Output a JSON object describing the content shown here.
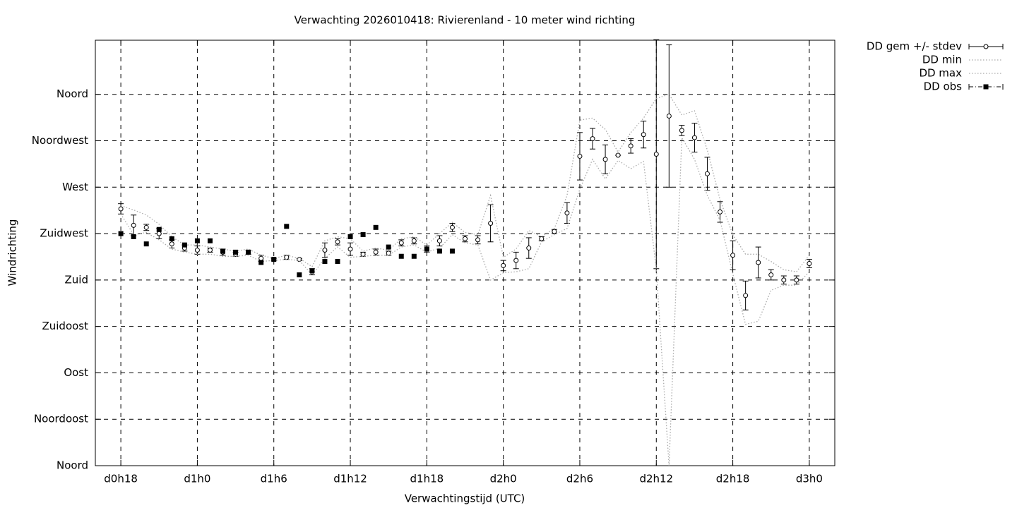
{
  "chart_data": {
    "type": "errorbar",
    "title": "Verwachting 2026010418: Rivierenland - 10 meter wind richting",
    "x_label": "Verwachtingstijd (UTC)",
    "y_label": "Windrichting",
    "x": [
      18,
      19,
      20,
      21,
      22,
      23,
      24,
      25,
      26,
      27,
      28,
      29,
      30,
      31,
      32,
      33,
      34,
      35,
      36,
      37,
      38,
      39,
      40,
      41,
      42,
      43,
      44,
      45,
      46,
      47,
      48,
      49,
      50,
      51,
      52,
      53,
      54,
      55,
      56,
      57,
      58,
      59,
      60,
      61,
      62,
      63,
      64,
      65,
      66,
      67,
      68,
      69,
      70,
      71,
      72
    ],
    "series": [
      {
        "name": "DD gem +/- stdev",
        "style": "errorbar",
        "color": "#000000",
        "values": [
          249,
          233,
          231,
          225,
          215,
          211,
          209,
          209,
          207,
          205,
          207,
          201,
          200,
          202,
          200,
          188,
          209,
          217,
          210,
          205,
          207,
          206,
          216,
          218,
          210,
          218,
          231,
          220,
          219,
          235,
          194,
          199,
          211,
          220,
          227,
          245,
          300,
          317,
          297,
          301,
          310,
          321,
          302,
          339,
          325,
          318,
          283,
          246,
          204,
          165,
          197,
          185,
          180,
          180,
          196
        ],
        "errors": [
          5,
          10,
          3,
          5,
          4,
          3,
          4,
          2,
          3,
          2,
          2,
          3,
          1,
          2,
          1,
          3,
          7,
          3,
          6,
          2,
          3,
          2,
          3,
          3,
          3,
          5,
          4,
          3,
          4,
          18,
          5,
          8,
          10,
          2,
          2,
          10,
          23,
          10,
          14,
          0,
          7,
          13,
          111,
          69,
          5,
          14,
          16,
          10,
          14,
          14,
          15,
          5,
          4,
          4,
          4
        ]
      },
      {
        "name": "DD min",
        "style": "dotted",
        "color": "#aaaaaa",
        "values": [
          244,
          224,
          226,
          219,
          210,
          207,
          205,
          205,
          203,
          203,
          204,
          198,
          199,
          200,
          199,
          185,
          201,
          212,
          202,
          203,
          204,
          204,
          212,
          214,
          207,
          211,
          224,
          216,
          214,
          180,
          187,
          188,
          191,
          217,
          224,
          230,
          268,
          297,
          278,
          296,
          288,
          295,
          190,
          0,
          318,
          297,
          262,
          238,
          186,
          137,
          140,
          170,
          175,
          175,
          188
        ]
      },
      {
        "name": "DD max",
        "style": "dotted",
        "color": "#aaaaaa",
        "values": [
          252,
          248,
          243,
          234,
          222,
          214,
          214,
          212,
          210,
          208,
          210,
          204,
          201,
          204,
          201,
          193,
          218,
          222,
          220,
          208,
          211,
          209,
          220,
          222,
          214,
          225,
          236,
          226,
          224,
          262,
          202,
          210,
          228,
          222,
          230,
          262,
          335,
          337,
          326,
          304,
          323,
          337,
          356,
          360,
          340,
          344,
          306,
          258,
          224,
          205,
          205,
          198,
          190,
          188,
          204
        ]
      },
      {
        "name": "DD obs",
        "style": "square",
        "color": "#000000",
        "values": [
          225,
          222,
          215,
          229,
          220,
          214,
          218,
          218,
          208,
          207,
          207,
          197,
          200,
          232,
          185,
          189,
          198,
          198,
          222,
          224,
          231,
          212,
          203,
          203,
          210,
          208,
          208,
          null,
          null,
          null,
          null,
          null,
          null,
          null,
          null,
          null,
          null,
          null,
          null,
          null,
          null,
          null,
          null,
          null,
          null,
          null,
          null,
          null,
          null,
          null,
          null,
          null,
          null,
          null,
          null
        ]
      }
    ],
    "xlim": [
      16,
      74
    ],
    "ylim": [
      0,
      412.5
    ],
    "xticks": [
      {
        "value": 18,
        "label": "d0h18"
      },
      {
        "value": 24,
        "label": "d1h0"
      },
      {
        "value": 30,
        "label": "d1h6"
      },
      {
        "value": 36,
        "label": "d1h12"
      },
      {
        "value": 42,
        "label": "d1h18"
      },
      {
        "value": 48,
        "label": "d2h0"
      },
      {
        "value": 54,
        "label": "d2h6"
      },
      {
        "value": 60,
        "label": "d2h12"
      },
      {
        "value": 66,
        "label": "d2h18"
      },
      {
        "value": 72,
        "label": "d3h0"
      }
    ],
    "yticks": [
      {
        "value": 0,
        "label": "Noord"
      },
      {
        "value": 45,
        "label": "Noordoost"
      },
      {
        "value": 90,
        "label": "Oost"
      },
      {
        "value": 135,
        "label": "Zuidoost"
      },
      {
        "value": 180,
        "label": "Zuid"
      },
      {
        "value": 225,
        "label": "Zuidwest"
      },
      {
        "value": 270,
        "label": "West"
      },
      {
        "value": 315,
        "label": "Noordwest"
      },
      {
        "value": 360,
        "label": "Noord"
      }
    ],
    "grid": true,
    "legend": "top-right-outside"
  }
}
